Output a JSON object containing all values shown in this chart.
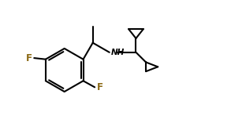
{
  "bg_color": "#ffffff",
  "line_color": "#000000",
  "F_color": "#8B6914",
  "NH_color": "#000000",
  "line_width": 1.5,
  "fig_width": 2.93,
  "fig_height": 1.66,
  "dpi": 100,
  "xlim": [
    0.0,
    9.0
  ],
  "ylim": [
    0.5,
    5.5
  ]
}
